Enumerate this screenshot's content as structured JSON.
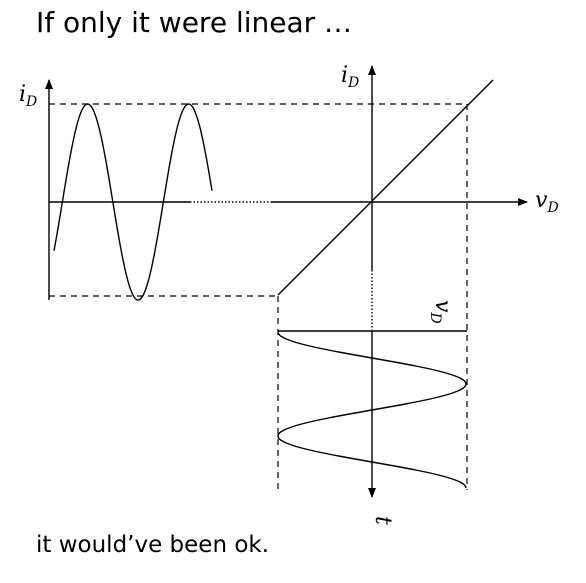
{
  "title": "If only it were linear …",
  "caption": "it would’ve been ok.",
  "labels": {
    "input_axis_main": "i",
    "input_axis_sub": "D",
    "char_y_main": "i",
    "char_y_sub": "D",
    "char_x_main": "v",
    "char_x_sub": "D",
    "out_axis_main": "v",
    "out_axis_sub": "D",
    "time_axis": "t"
  }
}
